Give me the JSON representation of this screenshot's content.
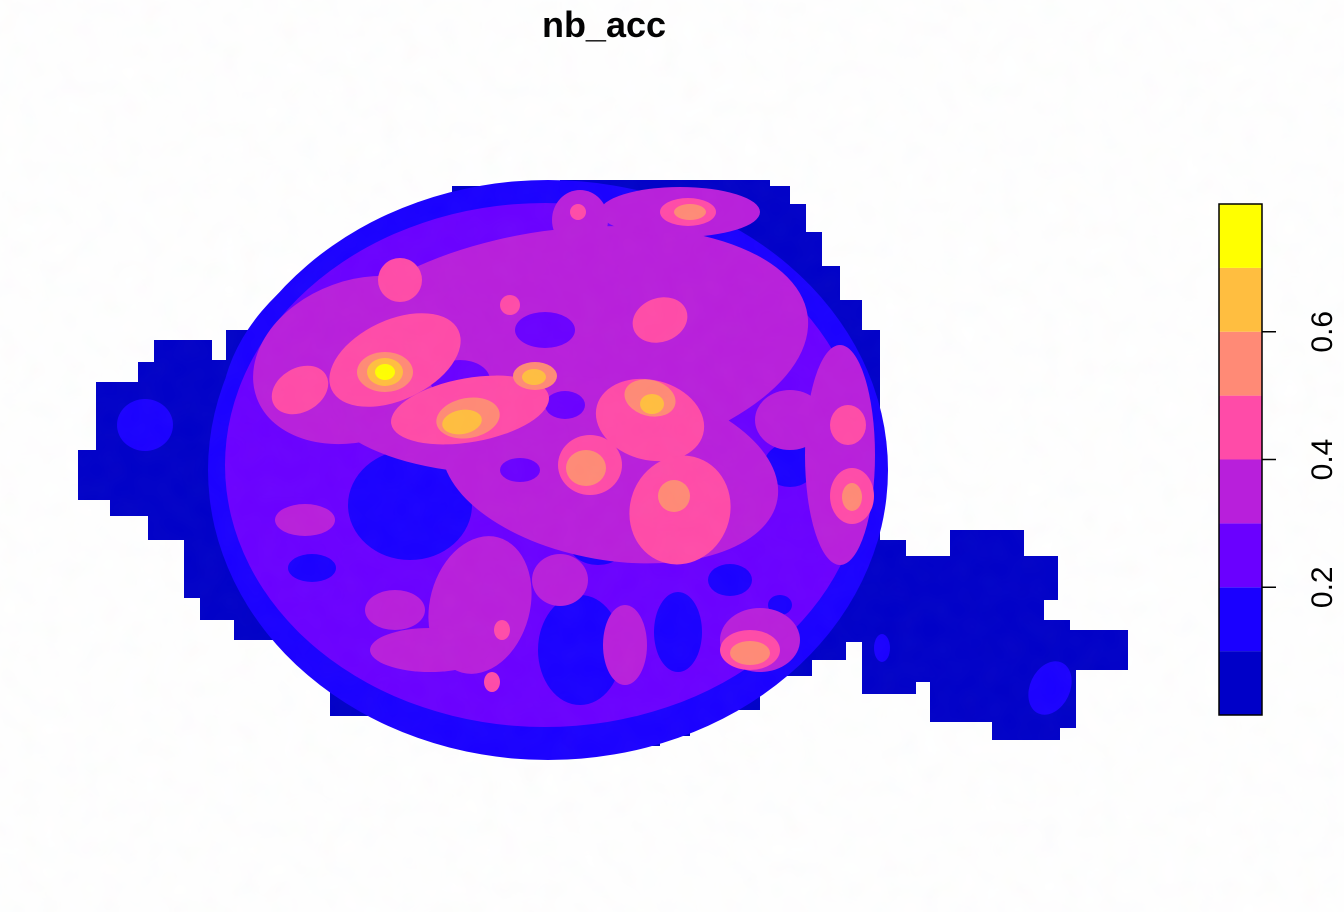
{
  "chart_data": {
    "type": "heatmap",
    "title": "nb_acc",
    "legend": {
      "placement": "right",
      "orientation": "vertical",
      "breaks": [
        0.0,
        0.1,
        0.2,
        0.3,
        0.4,
        0.5,
        0.6,
        0.7,
        0.8
      ],
      "colors": [
        "#0000C8",
        "#1A00FF",
        "#6A00FF",
        "#B81FDB",
        "#FF4BA8",
        "#FF8A76",
        "#FFBE40",
        "#FFFF00"
      ],
      "tick_values": [
        0.2,
        0.4,
        0.6
      ],
      "tick_labels": [
        "0.2",
        "0.4",
        "0.6"
      ]
    },
    "grid": false,
    "axes": false
  }
}
